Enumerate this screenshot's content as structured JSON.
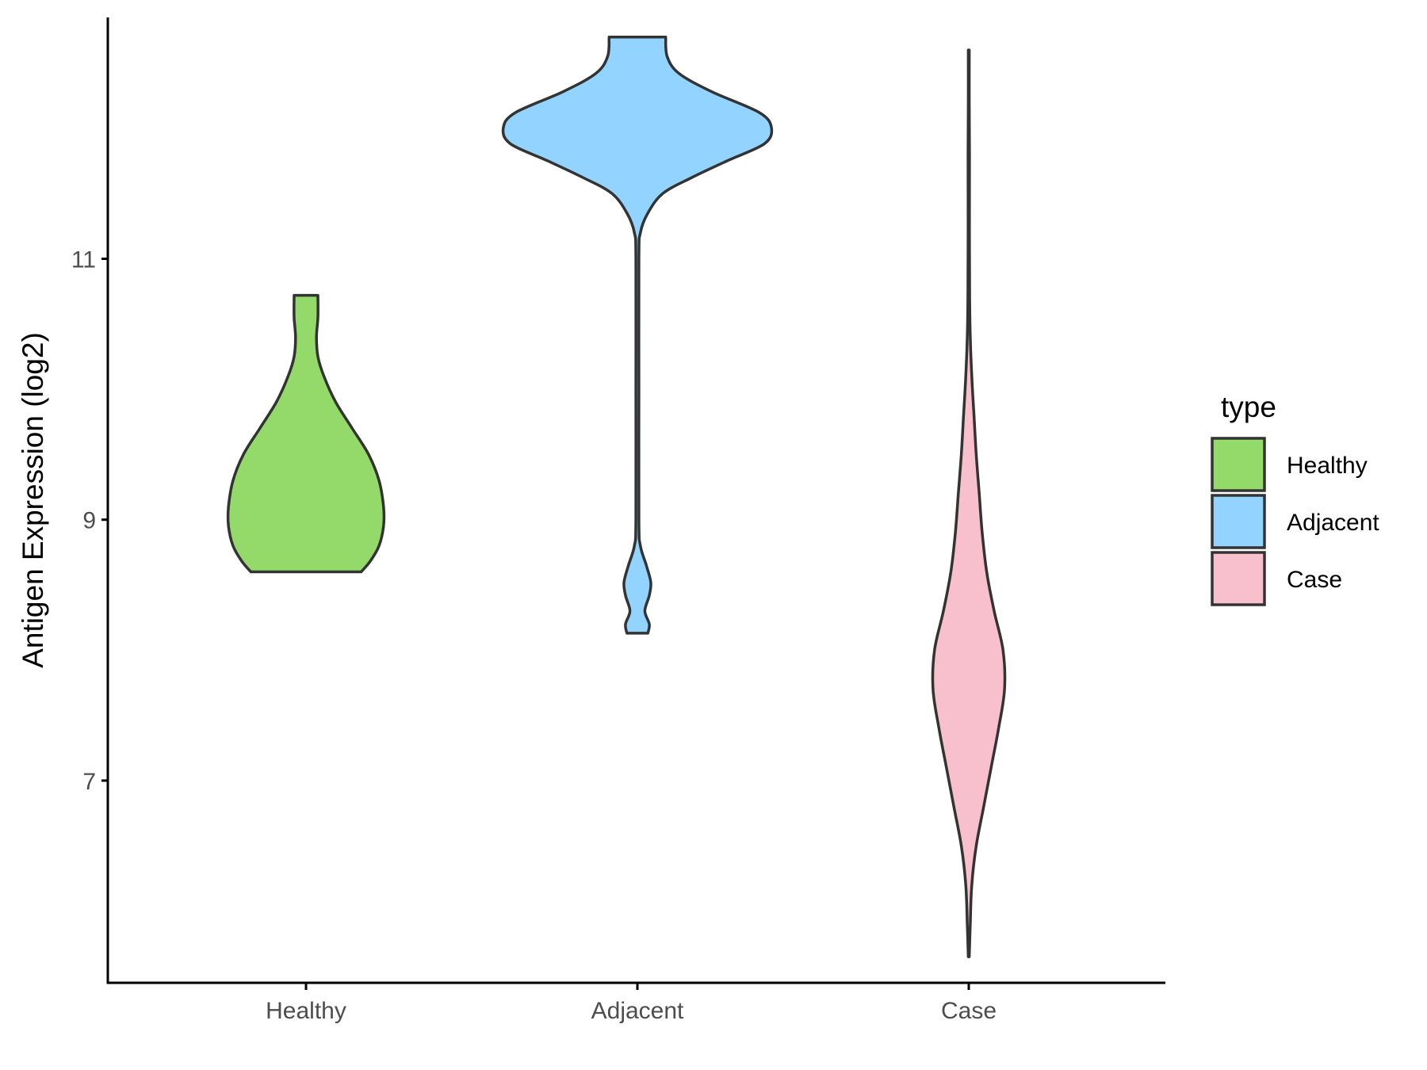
{
  "chart_data": {
    "type": "violin",
    "categories": [
      "Healthy",
      "Adjacent",
      "Case"
    ],
    "xlabel": "",
    "ylabel": "Antigen Expression (log2)",
    "ylim": [
      5.45,
      12.85
    ],
    "yticks": [
      7,
      9,
      11
    ],
    "grid": false,
    "legend": {
      "title": "type",
      "position": "right",
      "entries": [
        "Healthy",
        "Adjacent",
        "Case"
      ]
    },
    "series": [
      {
        "name": "Healthy",
        "color": "#93DA6A",
        "min": 8.6,
        "max": 10.72,
        "density": [
          [
            8.6,
            0.37
          ],
          [
            8.68,
            0.43
          ],
          [
            8.8,
            0.49
          ],
          [
            8.95,
            0.52
          ],
          [
            9.1,
            0.52
          ],
          [
            9.3,
            0.49
          ],
          [
            9.5,
            0.42
          ],
          [
            9.7,
            0.31
          ],
          [
            9.9,
            0.2
          ],
          [
            10.1,
            0.12
          ],
          [
            10.25,
            0.08
          ],
          [
            10.4,
            0.07
          ],
          [
            10.55,
            0.08
          ],
          [
            10.72,
            0.08
          ]
        ]
      },
      {
        "name": "Adjacent",
        "color": "#92D3FF",
        "min": 8.13,
        "max": 12.7,
        "density": [
          [
            8.13,
            0.07
          ],
          [
            8.2,
            0.08
          ],
          [
            8.3,
            0.05
          ],
          [
            8.42,
            0.08
          ],
          [
            8.52,
            0.09
          ],
          [
            8.65,
            0.06
          ],
          [
            8.8,
            0.02
          ],
          [
            9.0,
            0.01
          ],
          [
            10.0,
            0.01
          ],
          [
            11.0,
            0.01
          ],
          [
            11.2,
            0.02
          ],
          [
            11.35,
            0.07
          ],
          [
            11.5,
            0.17
          ],
          [
            11.62,
            0.36
          ],
          [
            11.75,
            0.6
          ],
          [
            11.88,
            0.85
          ],
          [
            12.0,
            0.9
          ],
          [
            12.12,
            0.82
          ],
          [
            12.28,
            0.5
          ],
          [
            12.42,
            0.28
          ],
          [
            12.55,
            0.2
          ],
          [
            12.7,
            0.19
          ]
        ]
      },
      {
        "name": "Case",
        "color": "#F7C0CC",
        "min": 5.65,
        "max": 12.6,
        "density": [
          [
            5.65,
            0.003
          ],
          [
            5.9,
            0.01
          ],
          [
            6.2,
            0.02
          ],
          [
            6.5,
            0.05
          ],
          [
            6.8,
            0.1
          ],
          [
            7.1,
            0.15
          ],
          [
            7.4,
            0.2
          ],
          [
            7.7,
            0.24
          ],
          [
            8.0,
            0.23
          ],
          [
            8.3,
            0.17
          ],
          [
            8.6,
            0.12
          ],
          [
            8.9,
            0.09
          ],
          [
            9.2,
            0.07
          ],
          [
            9.5,
            0.05
          ],
          [
            9.8,
            0.035
          ],
          [
            10.1,
            0.02
          ],
          [
            10.4,
            0.01
          ],
          [
            10.7,
            0.006
          ],
          [
            11.2,
            0.004
          ],
          [
            11.8,
            0.005
          ],
          [
            12.2,
            0.003
          ],
          [
            12.6,
            0.003
          ]
        ]
      }
    ]
  }
}
